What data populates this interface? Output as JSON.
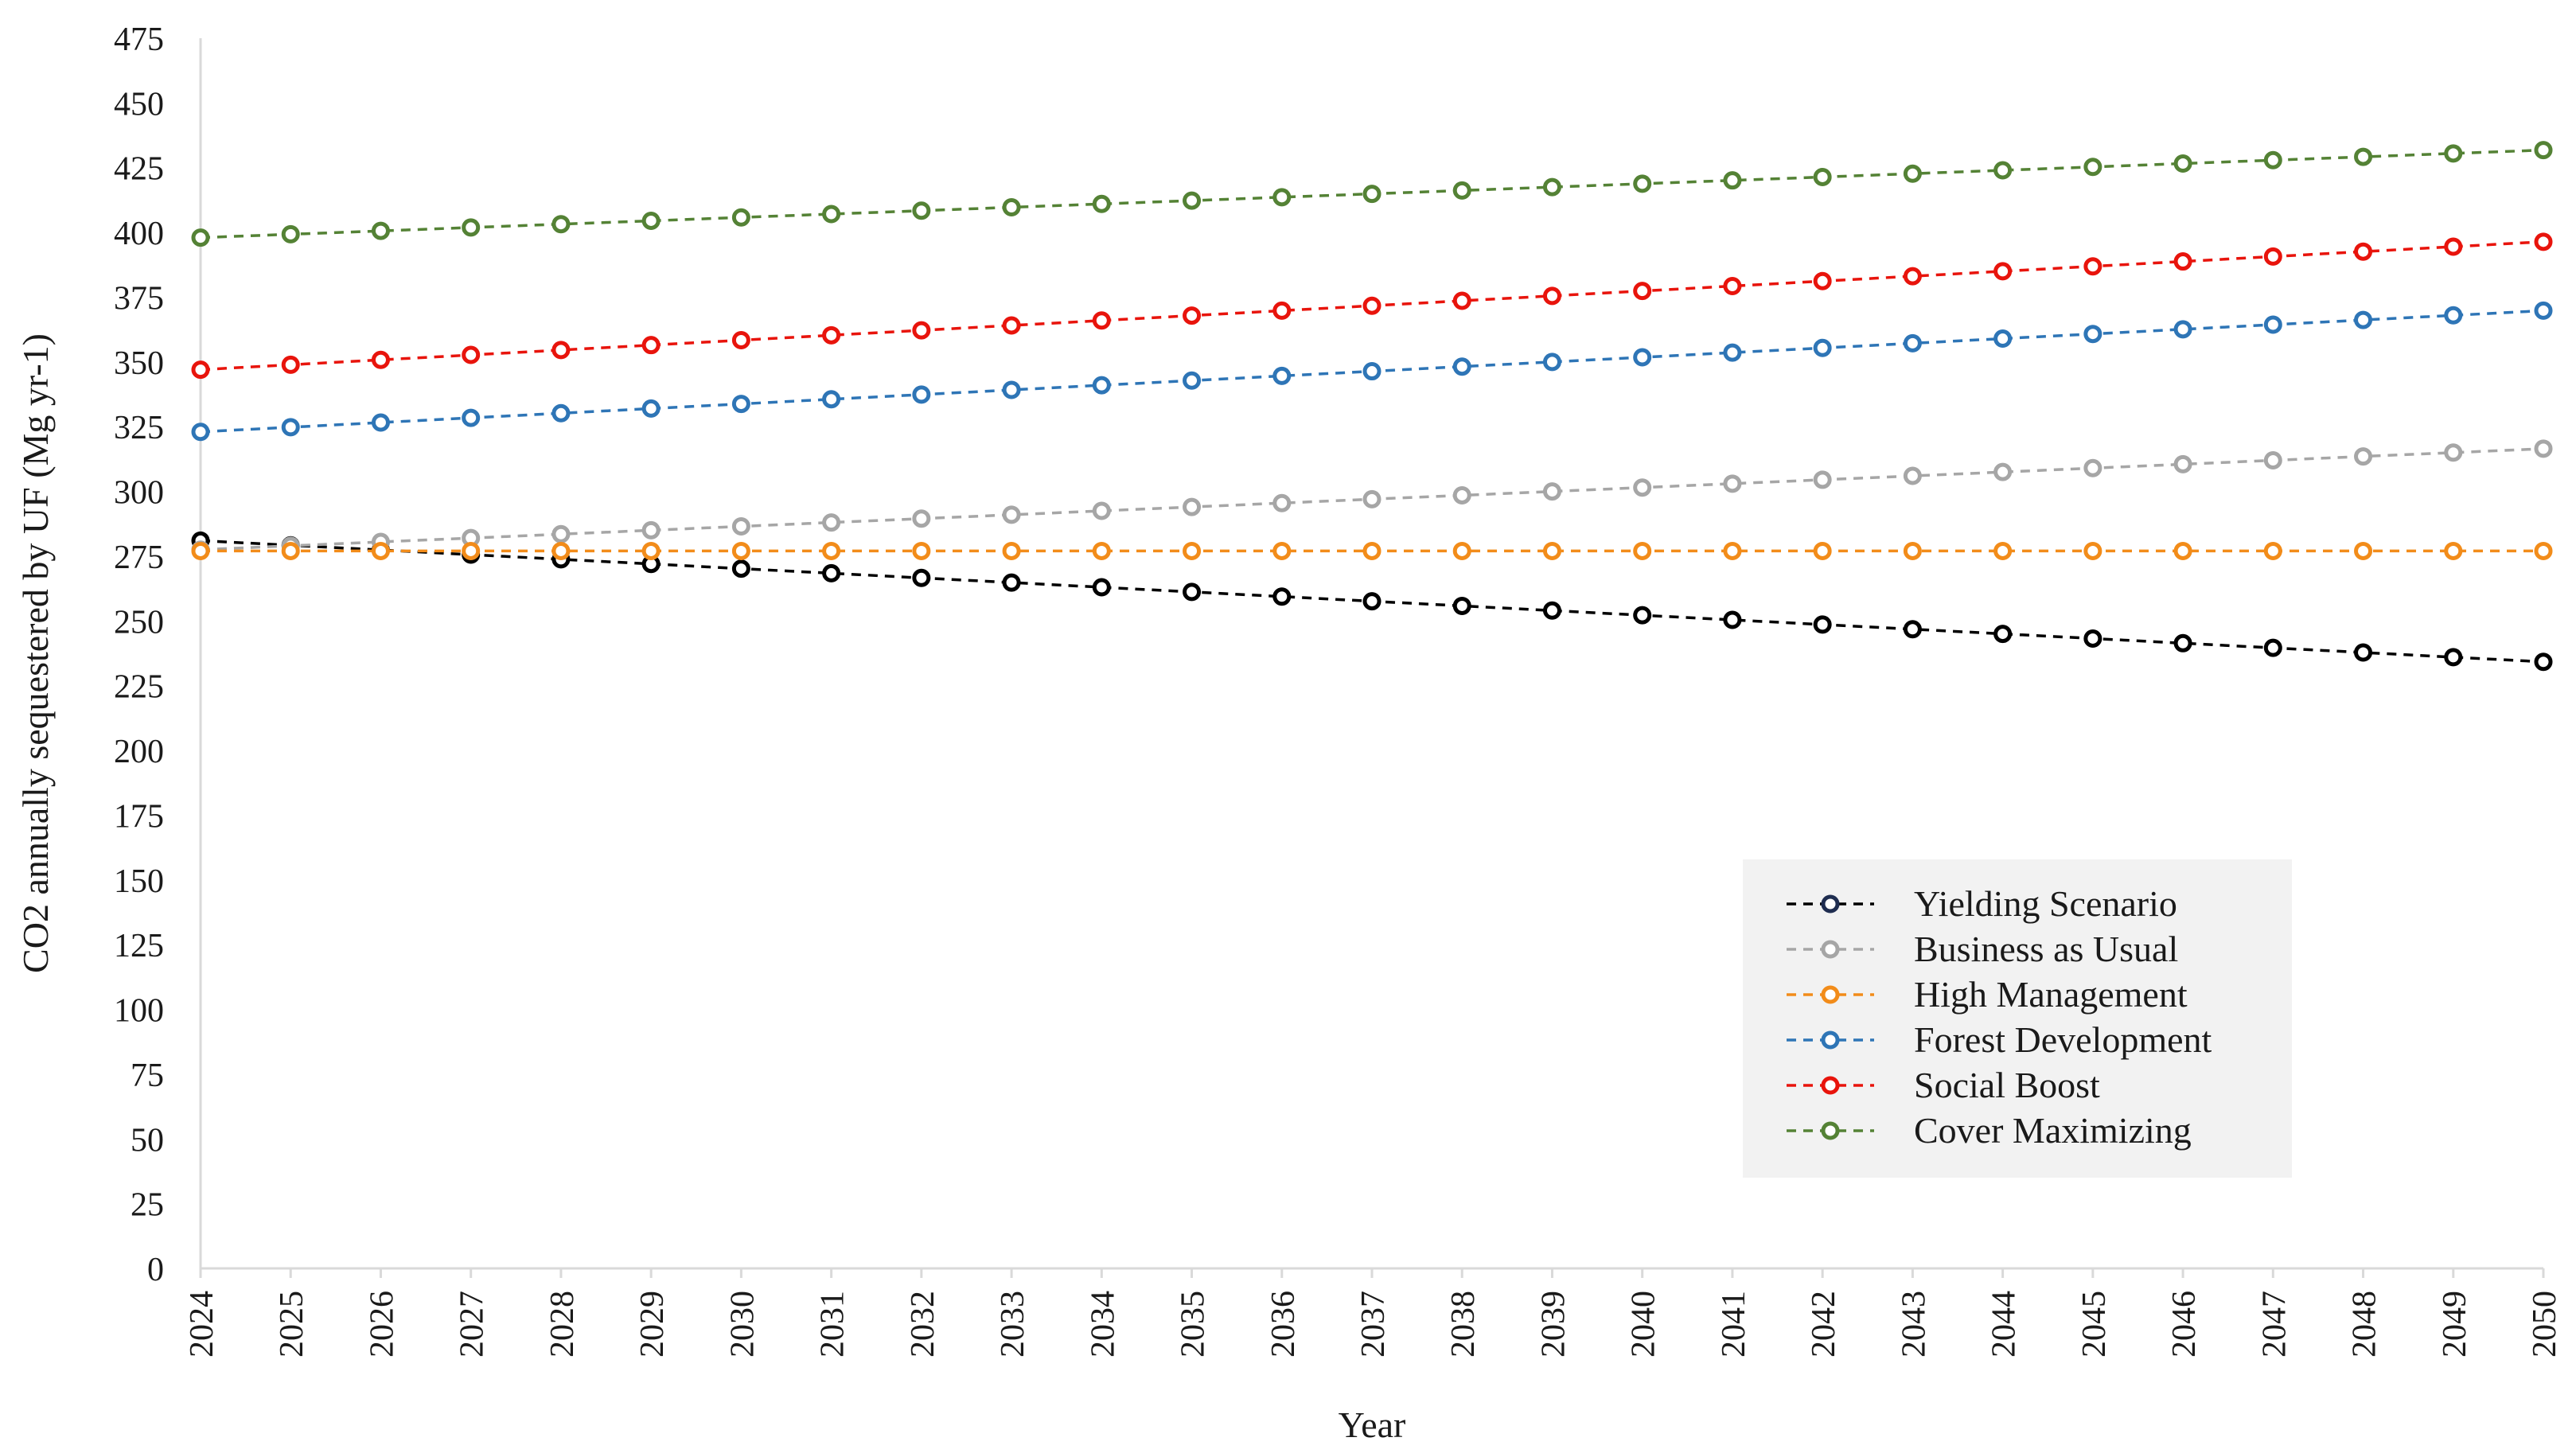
{
  "chart_data": {
    "type": "line",
    "title": "",
    "xlabel": "Year",
    "ylabel": "CO2 annually sequestered by UF (Mg yr-1)",
    "ylim": [
      0,
      475
    ],
    "ytick_step": 25,
    "grid": false,
    "legend_position": "lower-right",
    "categories": [
      "2024",
      "2025",
      "2026",
      "2027",
      "2028",
      "2029",
      "2030",
      "2031",
      "2032",
      "2033",
      "2034",
      "2035",
      "2036",
      "2037",
      "2038",
      "2039",
      "2040",
      "2041",
      "2042",
      "2043",
      "2044",
      "2045",
      "2046",
      "2047",
      "2048",
      "2049",
      "2050"
    ],
    "series": [
      {
        "name": "Yielding Scenario",
        "color": "#000000",
        "marker_color": "#000000",
        "legend_marker_color": "#1f2d50",
        "values": [
          281,
          279.2,
          277.4,
          275.6,
          273.8,
          272.0,
          270.2,
          268.4,
          266.6,
          264.8,
          263.0,
          261.2,
          259.4,
          257.6,
          255.8,
          254.0,
          252.2,
          250.4,
          248.6,
          246.8,
          245.0,
          243.2,
          241.4,
          239.6,
          237.8,
          236.0,
          234.2
        ]
      },
      {
        "name": "Business as Usual",
        "color": "#a6a6a6",
        "marker_color": "#a6a6a6",
        "values": [
          277.5,
          279.0,
          280.5,
          282.0,
          283.5,
          285.0,
          286.5,
          288.0,
          289.5,
          291.0,
          292.5,
          294.0,
          295.5,
          297.0,
          298.5,
          300.0,
          301.5,
          303.0,
          304.5,
          306.0,
          307.5,
          309.0,
          310.5,
          312.0,
          313.5,
          315.0,
          316.5
        ]
      },
      {
        "name": "High Management",
        "color": "#f28c1a",
        "marker_color": "#f28c1a",
        "values": [
          277,
          277,
          277,
          277,
          277,
          277,
          277,
          277,
          277,
          277,
          277,
          277,
          277,
          277,
          277,
          277,
          277,
          277,
          277,
          277,
          277,
          277,
          277,
          277,
          277,
          277,
          277
        ]
      },
      {
        "name": "Forest Development",
        "color": "#2e75b6",
        "marker_color": "#2e75b6",
        "values": [
          323.0,
          324.8,
          326.6,
          328.4,
          330.2,
          332.0,
          333.8,
          335.6,
          337.4,
          339.2,
          341.0,
          342.8,
          344.6,
          346.4,
          348.2,
          350.0,
          351.8,
          353.6,
          355.4,
          357.2,
          359.0,
          360.8,
          362.6,
          364.4,
          366.2,
          368.0,
          369.8
        ]
      },
      {
        "name": "Social Boost",
        "color": "#e8140c",
        "marker_color": "#e8140c",
        "values": [
          347.0,
          348.9,
          350.8,
          352.7,
          354.6,
          356.5,
          358.4,
          360.3,
          362.2,
          364.1,
          366.0,
          367.9,
          369.8,
          371.7,
          373.6,
          375.5,
          377.4,
          379.3,
          381.2,
          383.1,
          385.0,
          386.9,
          388.8,
          390.7,
          392.6,
          394.5,
          396.4
        ]
      },
      {
        "name": "Cover Maximizing",
        "color": "#548235",
        "marker_color": "#548235",
        "values": [
          398.0,
          399.3,
          400.6,
          401.9,
          403.2,
          404.5,
          405.8,
          407.1,
          408.4,
          409.7,
          411.0,
          412.3,
          413.6,
          414.9,
          416.2,
          417.5,
          418.8,
          420.1,
          421.4,
          422.7,
          424.0,
          425.3,
          426.6,
          427.9,
          429.2,
          430.5,
          431.8
        ]
      }
    ]
  }
}
